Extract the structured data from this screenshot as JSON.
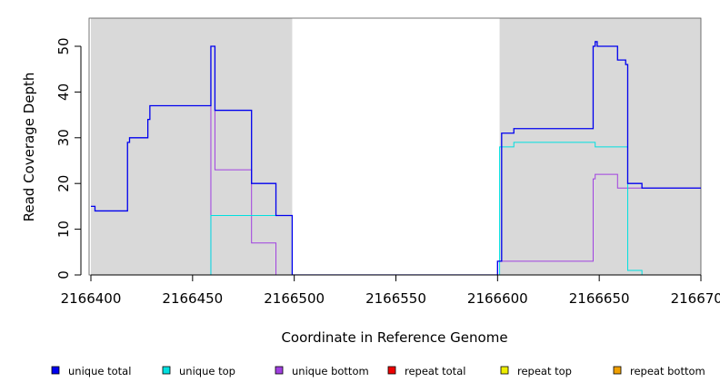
{
  "chart_data": {
    "type": "line",
    "xlabel": "Coordinate in Reference Genome",
    "ylabel": "Read Coverage Depth",
    "xlim": [
      2166400,
      2166700
    ],
    "ylim": [
      0,
      55
    ],
    "x_ticks": [
      2166400,
      2166450,
      2166500,
      2166550,
      2166600,
      2166650,
      2166700
    ],
    "x_tick_labels": [
      "2166400",
      "2166450",
      "2166500",
      "2166550",
      "2166600",
      "2166650",
      "2166700"
    ],
    "y_ticks": [
      0,
      10,
      20,
      30,
      40,
      50
    ],
    "y_tick_labels": [
      "0",
      "10",
      "20",
      "30",
      "40",
      "50"
    ],
    "shaded_regions": [
      [
        2166400,
        2166499
      ],
      [
        2166601,
        2166700
      ]
    ],
    "legend_position": "bottom",
    "series": [
      {
        "name": "unique total",
        "color": "#0000ee",
        "x": [
          2166400,
          2166402,
          2166402,
          2166418,
          2166418,
          2166419,
          2166419,
          2166428,
          2166428,
          2166429,
          2166429,
          2166459,
          2166459,
          2166461,
          2166461,
          2166479,
          2166479,
          2166491,
          2166491,
          2166499,
          2166499,
          2166600,
          2166600,
          2166602,
          2166602,
          2166608,
          2166608,
          2166647,
          2166647,
          2166648,
          2166648,
          2166649,
          2166649,
          2166659,
          2166659,
          2166663,
          2166663,
          2166664,
          2166664,
          2166671,
          2166671,
          2166700
        ],
        "y": [
          15,
          15,
          14,
          14,
          29,
          29,
          30,
          30,
          34,
          34,
          37,
          37,
          50,
          50,
          36,
          36,
          20,
          20,
          13,
          13,
          0,
          0,
          3,
          3,
          31,
          31,
          32,
          32,
          50,
          50,
          51,
          51,
          50,
          50,
          47,
          47,
          46,
          46,
          20,
          20,
          19,
          19
        ]
      },
      {
        "name": "unique top",
        "color": "#00e0e0",
        "x": [
          2166400,
          2166459,
          2166459,
          2166499,
          2166499,
          2166601,
          2166601,
          2166608,
          2166608,
          2166648,
          2166648,
          2166664,
          2166664,
          2166671,
          2166671,
          2166700
        ],
        "y": [
          0,
          0,
          13,
          13,
          0,
          0,
          28,
          28,
          29,
          29,
          28,
          28,
          1,
          1,
          0,
          0
        ]
      },
      {
        "name": "unique bottom",
        "color": "#a040e0",
        "x": [
          2166400,
          2166459,
          2166459,
          2166461,
          2166461,
          2166479,
          2166479,
          2166491,
          2166491,
          2166600,
          2166600,
          2166647,
          2166647,
          2166648,
          2166648,
          2166659,
          2166659,
          2166700
        ],
        "y": [
          0,
          0,
          50,
          50,
          23,
          23,
          7,
          7,
          0,
          0,
          3,
          3,
          21,
          21,
          22,
          22,
          19,
          19
        ]
      },
      {
        "name": "repeat total",
        "color": "#ee0000",
        "x": [
          2166400,
          2166700
        ],
        "y": [
          0,
          0
        ]
      },
      {
        "name": "repeat top",
        "color": "#eeee00",
        "x": [
          2166400,
          2166700
        ],
        "y": [
          0,
          0
        ]
      },
      {
        "name": "repeat bottom",
        "color": "#f0a000",
        "x": [
          2166400,
          2166700
        ],
        "y": [
          0,
          0
        ]
      }
    ]
  }
}
